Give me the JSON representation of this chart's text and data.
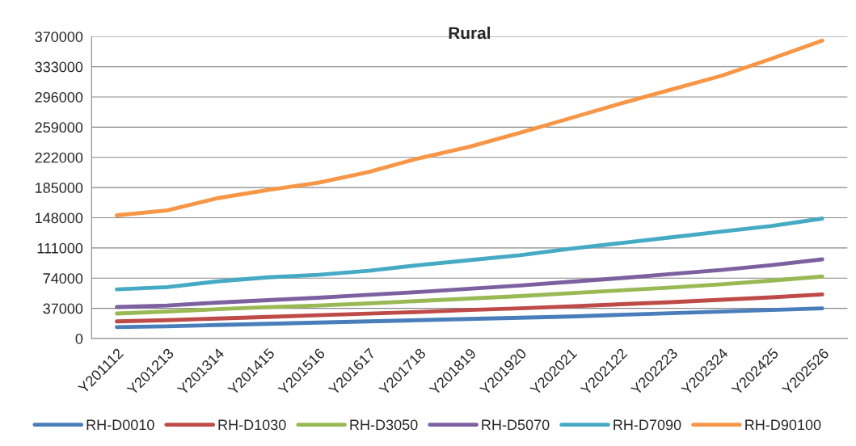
{
  "chart_data": {
    "type": "line",
    "title": "Rural",
    "categories": [
      "Y201112",
      "Y201213",
      "Y201314",
      "Y201415",
      "Y201516",
      "Y201617",
      "Y201718",
      "Y201819",
      "Y201920",
      "Y202021",
      "Y202122",
      "Y202223",
      "Y202324",
      "Y202425",
      "Y202526"
    ],
    "series": [
      {
        "name": "RH-D0010",
        "color": "#4a7ebb",
        "values": [
          14000,
          15000,
          16500,
          18000,
          19500,
          21000,
          22500,
          24000,
          25500,
          27000,
          29000,
          31000,
          33000,
          35000,
          37000
        ]
      },
      {
        "name": "RH-D1030",
        "color": "#be4b48",
        "values": [
          21000,
          22500,
          24500,
          26500,
          28500,
          30500,
          32500,
          35000,
          37000,
          39500,
          42000,
          44500,
          47500,
          50500,
          54000
        ]
      },
      {
        "name": "RH-D3050",
        "color": "#98b954",
        "values": [
          30700,
          33000,
          36000,
          38500,
          40500,
          43000,
          46000,
          49000,
          52000,
          55500,
          59000,
          62500,
          66500,
          71000,
          76000
        ]
      },
      {
        "name": "RH-D5070",
        "color": "#7d60a0",
        "values": [
          38600,
          40500,
          44000,
          47000,
          50000,
          53500,
          57000,
          61000,
          65000,
          69500,
          74000,
          79000,
          84000,
          90000,
          97000
        ]
      },
      {
        "name": "RH-D7090",
        "color": "#46aac5",
        "values": [
          60300,
          63000,
          70000,
          75000,
          78000,
          83000,
          90000,
          96000,
          102000,
          110000,
          117000,
          124000,
          131000,
          138000,
          147000
        ]
      },
      {
        "name": "RH-D90100",
        "color": "#f79646",
        "values": [
          151000,
          157000,
          172000,
          182000,
          191000,
          204000,
          221000,
          235000,
          252000,
          270000,
          288000,
          305000,
          322000,
          343000,
          365000
        ]
      }
    ],
    "ylim": [
      0,
      370000
    ],
    "yticks": [
      0,
      37000,
      74000,
      111000,
      148000,
      185000,
      222000,
      259000,
      296000,
      333000,
      370000
    ],
    "grid": "y",
    "legend": "bottom",
    "marker": "none",
    "line_style": "solid"
  }
}
